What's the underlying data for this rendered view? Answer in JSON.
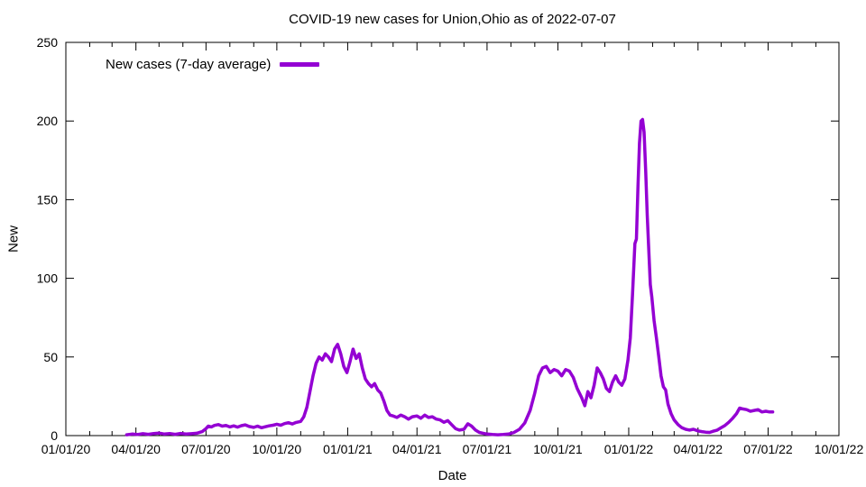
{
  "chart_data": {
    "type": "line",
    "title": "COVID-19 new cases for Union,Ohio as of 2022-07-07",
    "xlabel": "Date",
    "ylabel": "New",
    "legend_label": "New cases (7-day average)",
    "legend_position": "top-left-inside",
    "line_color": "#9400D3",
    "axis_color": "#000000",
    "background_color": "#ffffff",
    "grid": false,
    "x_range": [
      "2020-01-01",
      "2022-10-01"
    ],
    "y_range": [
      0,
      250
    ],
    "y_ticks": [
      0,
      50,
      100,
      150,
      200,
      250
    ],
    "x_minor_tick_interval_months": 1,
    "x_ticks": [
      {
        "date": "2020-01-01",
        "label": "01/01/20"
      },
      {
        "date": "2020-04-01",
        "label": "04/01/20"
      },
      {
        "date": "2020-07-01",
        "label": "07/01/20"
      },
      {
        "date": "2020-10-01",
        "label": "10/01/20"
      },
      {
        "date": "2021-01-01",
        "label": "01/01/21"
      },
      {
        "date": "2021-04-01",
        "label": "04/01/21"
      },
      {
        "date": "2021-07-01",
        "label": "07/01/21"
      },
      {
        "date": "2021-10-01",
        "label": "10/01/21"
      },
      {
        "date": "2022-01-01",
        "label": "01/01/22"
      },
      {
        "date": "2022-04-01",
        "label": "04/01/22"
      },
      {
        "date": "2022-07-01",
        "label": "07/01/22"
      },
      {
        "date": "2022-10-01",
        "label": "10/01/22"
      }
    ],
    "series": [
      {
        "name": "New cases (7-day average)",
        "points": [
          [
            "2020-03-20",
            0.5
          ],
          [
            "2020-03-27",
            1
          ],
          [
            "2020-04-03",
            0.7
          ],
          [
            "2020-04-10",
            1.2
          ],
          [
            "2020-04-17",
            0.8
          ],
          [
            "2020-04-24",
            1.3
          ],
          [
            "2020-05-01",
            1.6
          ],
          [
            "2020-05-08",
            1.0
          ],
          [
            "2020-05-15",
            1.3
          ],
          [
            "2020-05-22",
            0.8
          ],
          [
            "2020-05-29",
            1.4
          ],
          [
            "2020-06-05",
            1.0
          ],
          [
            "2020-06-12",
            1.2
          ],
          [
            "2020-06-19",
            1.5
          ],
          [
            "2020-06-26",
            2.5
          ],
          [
            "2020-07-01",
            4.5
          ],
          [
            "2020-07-04",
            6.0
          ],
          [
            "2020-07-08",
            5.5
          ],
          [
            "2020-07-12",
            6.5
          ],
          [
            "2020-07-17",
            7.0
          ],
          [
            "2020-07-22",
            6.0
          ],
          [
            "2020-07-27",
            6.5
          ],
          [
            "2020-08-01",
            5.5
          ],
          [
            "2020-08-06",
            6.2
          ],
          [
            "2020-08-11",
            5.4
          ],
          [
            "2020-08-16",
            6.3
          ],
          [
            "2020-08-21",
            6.8
          ],
          [
            "2020-08-26",
            5.8
          ],
          [
            "2020-09-01",
            5.2
          ],
          [
            "2020-09-06",
            6.0
          ],
          [
            "2020-09-11",
            5.0
          ],
          [
            "2020-09-16",
            5.6
          ],
          [
            "2020-09-21",
            6.2
          ],
          [
            "2020-09-26",
            6.6
          ],
          [
            "2020-10-01",
            7.2
          ],
          [
            "2020-10-06",
            6.6
          ],
          [
            "2020-10-11",
            7.6
          ],
          [
            "2020-10-16",
            8.2
          ],
          [
            "2020-10-21",
            7.4
          ],
          [
            "2020-10-26",
            8.4
          ],
          [
            "2020-11-01",
            9.0
          ],
          [
            "2020-11-05",
            12
          ],
          [
            "2020-11-09",
            18
          ],
          [
            "2020-11-13",
            28
          ],
          [
            "2020-11-17",
            38
          ],
          [
            "2020-11-21",
            46
          ],
          [
            "2020-11-25",
            50
          ],
          [
            "2020-11-29",
            48
          ],
          [
            "2020-12-03",
            52
          ],
          [
            "2020-12-07",
            50
          ],
          [
            "2020-12-11",
            47
          ],
          [
            "2020-12-15",
            55
          ],
          [
            "2020-12-19",
            58
          ],
          [
            "2020-12-23",
            52
          ],
          [
            "2020-12-27",
            44
          ],
          [
            "2020-12-31",
            40
          ],
          [
            "2021-01-04",
            47
          ],
          [
            "2021-01-08",
            55
          ],
          [
            "2021-01-12",
            49
          ],
          [
            "2021-01-16",
            52
          ],
          [
            "2021-01-20",
            43
          ],
          [
            "2021-01-24",
            36
          ],
          [
            "2021-01-28",
            33
          ],
          [
            "2021-02-01",
            31
          ],
          [
            "2021-02-05",
            33
          ],
          [
            "2021-02-09",
            29
          ],
          [
            "2021-02-13",
            27
          ],
          [
            "2021-02-17",
            22
          ],
          [
            "2021-02-21",
            16
          ],
          [
            "2021-02-25",
            13
          ],
          [
            "2021-03-01",
            12.5
          ],
          [
            "2021-03-06",
            11.5
          ],
          [
            "2021-03-11",
            13
          ],
          [
            "2021-03-16",
            12
          ],
          [
            "2021-03-21",
            10.5
          ],
          [
            "2021-03-26",
            12
          ],
          [
            "2021-04-01",
            12.5
          ],
          [
            "2021-04-06",
            11
          ],
          [
            "2021-04-11",
            13
          ],
          [
            "2021-04-16",
            11.5
          ],
          [
            "2021-04-21",
            12
          ],
          [
            "2021-04-26",
            10.5
          ],
          [
            "2021-05-01",
            10
          ],
          [
            "2021-05-06",
            8.5
          ],
          [
            "2021-05-11",
            9.5
          ],
          [
            "2021-05-16",
            7
          ],
          [
            "2021-05-21",
            4.5
          ],
          [
            "2021-05-26",
            3.5
          ],
          [
            "2021-06-01",
            4
          ],
          [
            "2021-06-06",
            7.5
          ],
          [
            "2021-06-11",
            6
          ],
          [
            "2021-06-16",
            3.5
          ],
          [
            "2021-06-21",
            2
          ],
          [
            "2021-06-26",
            1.5
          ],
          [
            "2021-07-01",
            1
          ],
          [
            "2021-07-08",
            0.7
          ],
          [
            "2021-07-15",
            0.5
          ],
          [
            "2021-07-22",
            0.7
          ],
          [
            "2021-07-29",
            1
          ],
          [
            "2021-08-05",
            2
          ],
          [
            "2021-08-12",
            4
          ],
          [
            "2021-08-19",
            8
          ],
          [
            "2021-08-26",
            16
          ],
          [
            "2021-09-01",
            27
          ],
          [
            "2021-09-06",
            38
          ],
          [
            "2021-09-11",
            43
          ],
          [
            "2021-09-16",
            44
          ],
          [
            "2021-09-21",
            40
          ],
          [
            "2021-09-26",
            42
          ],
          [
            "2021-10-01",
            41
          ],
          [
            "2021-10-06",
            38
          ],
          [
            "2021-10-11",
            42
          ],
          [
            "2021-10-16",
            41
          ],
          [
            "2021-10-21",
            37
          ],
          [
            "2021-10-26",
            30
          ],
          [
            "2021-11-01",
            24
          ],
          [
            "2021-11-05",
            19
          ],
          [
            "2021-11-09",
            28
          ],
          [
            "2021-11-13",
            24
          ],
          [
            "2021-11-17",
            32
          ],
          [
            "2021-11-21",
            43
          ],
          [
            "2021-11-25",
            40
          ],
          [
            "2021-11-29",
            36
          ],
          [
            "2021-12-03",
            30
          ],
          [
            "2021-12-07",
            28
          ],
          [
            "2021-12-11",
            34
          ],
          [
            "2021-12-15",
            38
          ],
          [
            "2021-12-19",
            34
          ],
          [
            "2021-12-23",
            32
          ],
          [
            "2021-12-27",
            36
          ],
          [
            "2021-12-31",
            48
          ],
          [
            "2022-01-03",
            62
          ],
          [
            "2022-01-06",
            90
          ],
          [
            "2022-01-09",
            122
          ],
          [
            "2022-01-11",
            125
          ],
          [
            "2022-01-13",
            158
          ],
          [
            "2022-01-15",
            186
          ],
          [
            "2022-01-17",
            200
          ],
          [
            "2022-01-19",
            201
          ],
          [
            "2022-01-21",
            193
          ],
          [
            "2022-01-23",
            168
          ],
          [
            "2022-01-25",
            140
          ],
          [
            "2022-01-27",
            118
          ],
          [
            "2022-01-29",
            96
          ],
          [
            "2022-01-31",
            88
          ],
          [
            "2022-02-03",
            73
          ],
          [
            "2022-02-06",
            62
          ],
          [
            "2022-02-09",
            50
          ],
          [
            "2022-02-12",
            38
          ],
          [
            "2022-02-15",
            31
          ],
          [
            "2022-02-18",
            29
          ],
          [
            "2022-02-21",
            20
          ],
          [
            "2022-02-25",
            14
          ],
          [
            "2022-03-01",
            10
          ],
          [
            "2022-03-06",
            7
          ],
          [
            "2022-03-11",
            5
          ],
          [
            "2022-03-16",
            4
          ],
          [
            "2022-03-21",
            3.5
          ],
          [
            "2022-03-26",
            4
          ],
          [
            "2022-04-01",
            3
          ],
          [
            "2022-04-06",
            2.5
          ],
          [
            "2022-04-11",
            2.2
          ],
          [
            "2022-04-16",
            2
          ],
          [
            "2022-04-21",
            2.8
          ],
          [
            "2022-04-26",
            3.5
          ],
          [
            "2022-05-01",
            5
          ],
          [
            "2022-05-06",
            6.5
          ],
          [
            "2022-05-11",
            8.5
          ],
          [
            "2022-05-16",
            11
          ],
          [
            "2022-05-21",
            14
          ],
          [
            "2022-05-25",
            17.5
          ],
          [
            "2022-05-29",
            17
          ],
          [
            "2022-06-03",
            16.5
          ],
          [
            "2022-06-08",
            15.5
          ],
          [
            "2022-06-13",
            16
          ],
          [
            "2022-06-18",
            16.5
          ],
          [
            "2022-06-23",
            15
          ],
          [
            "2022-06-28",
            15.5
          ],
          [
            "2022-07-03",
            15
          ],
          [
            "2022-07-07",
            15
          ]
        ]
      }
    ]
  }
}
